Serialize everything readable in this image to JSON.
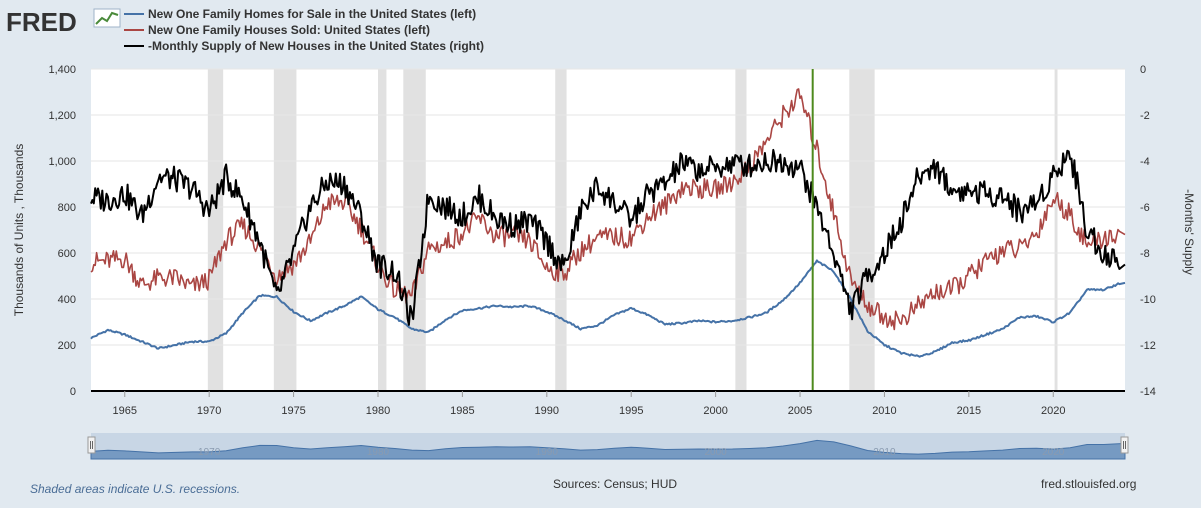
{
  "app": {
    "logo": "FRED"
  },
  "colors": {
    "series_blue": "#4572a7",
    "series_red": "#aa4643",
    "series_black": "#000000",
    "recession": "#e1e1e1",
    "marker": "#4d8a1d",
    "background": "#e1e9f0"
  },
  "legend": [
    {
      "label": "New One Family Homes for Sale in the United States (left)",
      "color": "#4572a7"
    },
    {
      "label": "New One Family Houses Sold: United States (left)",
      "color": "#aa4643"
    },
    {
      "label": "-Monthly Supply of New Houses in the United States (right)",
      "color": "#000000"
    }
  ],
  "footer": {
    "note": "Shaded areas indicate U.S. recessions.",
    "sources": "Sources: Census; HUD",
    "site": "fred.stlouisfed.org"
  },
  "chart_data": {
    "type": "line",
    "xlabel": "",
    "ylabel_left": "Thousands of Units , Thousands",
    "ylabel_right": "-Months' Supply",
    "xlim": [
      1963.0,
      2024.25
    ],
    "ylim_left": [
      0,
      1400
    ],
    "ylim_right": [
      -14,
      0
    ],
    "x_ticks": [
      1965,
      1970,
      1975,
      1980,
      1985,
      1990,
      1995,
      2000,
      2005,
      2010,
      2015,
      2020
    ],
    "y_ticks_left": [
      "0",
      "200",
      "400",
      "600",
      "800",
      "1,000",
      "1,200",
      "1,400"
    ],
    "y_ticks_right": [
      "-14",
      "-12",
      "-10",
      "-8",
      "-6",
      "-4",
      "-2",
      "0"
    ],
    "navigator_labels": [
      "1970",
      "1980",
      "1990",
      "2000",
      "2010",
      "2020"
    ],
    "grid": true,
    "legend_position": "top-left",
    "recessions": [
      [
        1969.92,
        1970.83
      ],
      [
        1973.83,
        1975.17
      ],
      [
        1980.0,
        1980.5
      ],
      [
        1981.5,
        1982.83
      ],
      [
        1990.5,
        1991.17
      ],
      [
        2001.17,
        2001.83
      ],
      [
        2007.92,
        2009.42
      ],
      [
        2020.08,
        2020.25
      ]
    ],
    "marker_x": 2005.75,
    "series": [
      {
        "name": "New One Family Homes for Sale in the United States (left)",
        "axis": "left",
        "x": [
          1963,
          1964,
          1965,
          1966,
          1967,
          1968,
          1969,
          1970,
          1971,
          1972,
          1973,
          1974,
          1975,
          1976,
          1977,
          1978,
          1979,
          1980,
          1981,
          1982,
          1983,
          1984,
          1985,
          1986,
          1987,
          1988,
          1989,
          1990,
          1991,
          1992,
          1993,
          1994,
          1995,
          1996,
          1997,
          1998,
          1999,
          2000,
          2001,
          2002,
          2003,
          2004,
          2005,
          2006,
          2007,
          2008,
          2009,
          2010,
          2011,
          2012,
          2013,
          2014,
          2015,
          2016,
          2017,
          2018,
          2019,
          2020,
          2021,
          2022,
          2023,
          2024
        ],
        "values": [
          230,
          265,
          245,
          215,
          185,
          200,
          215,
          215,
          250,
          340,
          415,
          410,
          345,
          305,
          340,
          370,
          410,
          355,
          320,
          270,
          255,
          310,
          350,
          360,
          370,
          365,
          370,
          345,
          310,
          270,
          285,
          330,
          360,
          330,
          290,
          295,
          305,
          300,
          305,
          320,
          340,
          395,
          470,
          565,
          520,
          400,
          260,
          200,
          165,
          150,
          170,
          210,
          220,
          245,
          270,
          320,
          325,
          300,
          340,
          440,
          440,
          470
        ]
      },
      {
        "name": "New One Family Houses Sold: United States (left)",
        "axis": "left",
        "x": [
          1963,
          1964,
          1965,
          1966,
          1967,
          1968,
          1969,
          1970,
          1971,
          1972,
          1973,
          1974,
          1975,
          1976,
          1977,
          1978,
          1979,
          1980,
          1981,
          1982,
          1983,
          1984,
          1985,
          1986,
          1987,
          1988,
          1989,
          1990,
          1991,
          1992,
          1993,
          1994,
          1995,
          1996,
          1997,
          1998,
          1999,
          2000,
          2001,
          2002,
          2003,
          2004,
          2005,
          2006,
          2007,
          2008,
          2009,
          2010,
          2011,
          2012,
          2013,
          2014,
          2015,
          2016,
          2017,
          2018,
          2019,
          2020,
          2021,
          2022,
          2023,
          2024
        ],
        "values": [
          560,
          565,
          575,
          460,
          490,
          490,
          450,
          485,
          655,
          720,
          620,
          500,
          550,
          650,
          820,
          820,
          710,
          545,
          435,
          410,
          620,
          640,
          690,
          750,
          670,
          675,
          650,
          535,
          510,
          610,
          665,
          670,
          665,
          760,
          805,
          885,
          880,
          875,
          910,
          975,
          1085,
          1200,
          1285,
          1050,
          775,
          485,
          375,
          320,
          305,
          370,
          430,
          440,
          500,
          560,
          615,
          615,
          685,
          840,
          770,
          635,
          665,
          680
        ]
      },
      {
        "name": "-Monthly Supply of New Houses in the United States (right)",
        "axis": "right",
        "x": [
          1963,
          1964,
          1965,
          1966,
          1967,
          1968,
          1969,
          1970,
          1971,
          1972,
          1973,
          1974,
          1975,
          1976,
          1977,
          1978,
          1979,
          1980,
          1981,
          1982,
          1983,
          1984,
          1985,
          1986,
          1987,
          1988,
          1989,
          1990,
          1991,
          1992,
          1993,
          1994,
          1995,
          1996,
          1997,
          1998,
          1999,
          2000,
          2001,
          2002,
          2003,
          2004,
          2005,
          2006,
          2007,
          2008,
          2009,
          2010,
          2011,
          2012,
          2013,
          2014,
          2015,
          2016,
          2017,
          2018,
          2019,
          2020,
          2021,
          2022,
          2023,
          2024
        ],
        "values": [
          -5.6,
          -5.7,
          -5.4,
          -6.4,
          -4.7,
          -4.8,
          -5.2,
          -6.2,
          -4.7,
          -5.7,
          -7.5,
          -10.0,
          -8.0,
          -6.0,
          -4.9,
          -5.0,
          -6.4,
          -8.5,
          -8.8,
          -11.0,
          -5.5,
          -6.0,
          -6.4,
          -5.6,
          -6.5,
          -6.8,
          -6.6,
          -7.5,
          -8.7,
          -6.2,
          -5.1,
          -5.8,
          -6.6,
          -5.4,
          -5.0,
          -4.1,
          -4.4,
          -4.3,
          -4.1,
          -4.2,
          -4.0,
          -4.0,
          -4.3,
          -6.0,
          -8.0,
          -10.5,
          -9.0,
          -8.0,
          -6.6,
          -4.7,
          -4.2,
          -5.3,
          -5.3,
          -5.4,
          -5.5,
          -6.2,
          -5.8,
          -4.6,
          -3.6,
          -7.0,
          -8.0,
          -8.5
        ]
      }
    ]
  }
}
